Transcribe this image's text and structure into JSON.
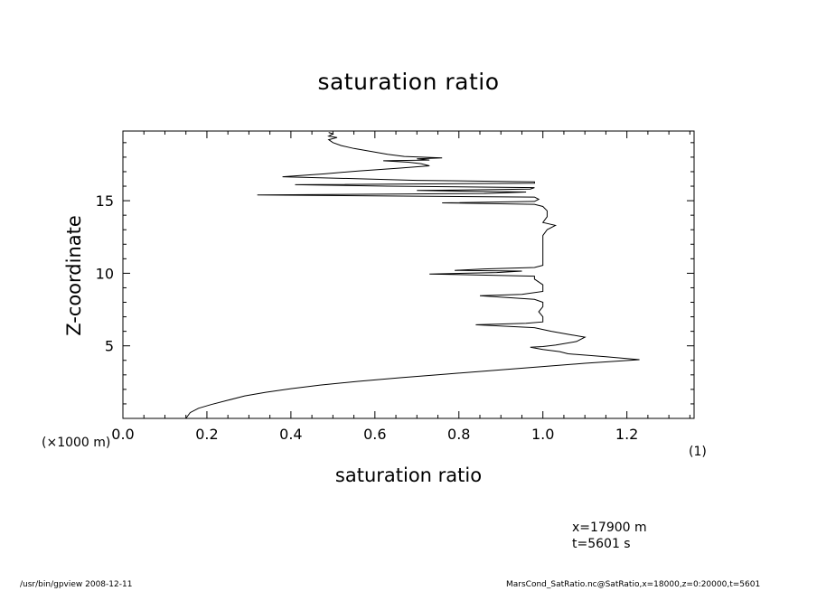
{
  "chart_data": {
    "type": "line",
    "title": "saturation ratio",
    "xlabel": "saturation ratio",
    "ylabel": "Z-coordinate",
    "x_unit": "(1)",
    "y_unit": "(×1000 m)",
    "xlim": [
      0.0,
      1.36
    ],
    "ylim": [
      0.0,
      19.8
    ],
    "x_ticks": [
      "0.0",
      "0.2",
      "0.4",
      "0.6",
      "0.8",
      "1.0",
      "1.2"
    ],
    "x_tick_values": [
      0.0,
      0.2,
      0.4,
      0.6,
      0.8,
      1.0,
      1.2
    ],
    "y_ticks": [
      "5",
      "10",
      "15"
    ],
    "y_tick_values": [
      5,
      10,
      15
    ],
    "grid": false,
    "series": [
      {
        "color": "#000000",
        "points": [
          [
            0.15,
            0.0
          ],
          [
            0.16,
            0.4
          ],
          [
            0.18,
            0.7
          ],
          [
            0.21,
            0.95
          ],
          [
            0.25,
            1.25
          ],
          [
            0.29,
            1.55
          ],
          [
            0.34,
            1.8
          ],
          [
            0.4,
            2.05
          ],
          [
            0.47,
            2.3
          ],
          [
            0.56,
            2.55
          ],
          [
            0.66,
            2.8
          ],
          [
            0.77,
            3.05
          ],
          [
            0.88,
            3.3
          ],
          [
            0.99,
            3.55
          ],
          [
            1.1,
            3.8
          ],
          [
            1.23,
            4.05
          ],
          [
            1.15,
            4.25
          ],
          [
            1.06,
            4.45
          ],
          [
            1.04,
            4.6
          ],
          [
            1.0,
            4.75
          ],
          [
            0.97,
            4.9
          ],
          [
            1.0,
            4.95
          ],
          [
            1.03,
            5.05
          ],
          [
            1.08,
            5.3
          ],
          [
            1.1,
            5.6
          ],
          [
            1.07,
            5.75
          ],
          [
            1.02,
            6.0
          ],
          [
            0.98,
            6.25
          ],
          [
            0.84,
            6.45
          ],
          [
            0.96,
            6.55
          ],
          [
            1.0,
            6.65
          ],
          [
            1.0,
            7.0
          ],
          [
            0.99,
            7.35
          ],
          [
            1.0,
            7.7
          ],
          [
            1.0,
            8.0
          ],
          [
            0.98,
            8.2
          ],
          [
            0.85,
            8.45
          ],
          [
            0.95,
            8.55
          ],
          [
            1.0,
            8.75
          ],
          [
            1.0,
            9.2
          ],
          [
            0.98,
            9.6
          ],
          [
            0.98,
            9.8
          ],
          [
            0.73,
            9.95
          ],
          [
            0.89,
            10.05
          ],
          [
            0.95,
            10.15
          ],
          [
            0.79,
            10.2
          ],
          [
            0.86,
            10.3
          ],
          [
            0.98,
            10.4
          ],
          [
            1.0,
            10.55
          ],
          [
            1.0,
            11.2
          ],
          [
            1.0,
            11.9
          ],
          [
            1.0,
            12.6
          ],
          [
            1.01,
            13.0
          ],
          [
            1.03,
            13.3
          ],
          [
            1.0,
            13.5
          ],
          [
            1.01,
            13.9
          ],
          [
            1.01,
            14.3
          ],
          [
            1.0,
            14.6
          ],
          [
            0.98,
            14.75
          ],
          [
            0.76,
            14.85
          ],
          [
            0.98,
            14.95
          ],
          [
            0.99,
            15.1
          ],
          [
            0.98,
            15.25
          ],
          [
            0.32,
            15.4
          ],
          [
            0.86,
            15.5
          ],
          [
            0.96,
            15.6
          ],
          [
            0.7,
            15.7
          ],
          [
            0.97,
            15.8
          ],
          [
            0.98,
            15.9
          ],
          [
            0.63,
            16.0
          ],
          [
            0.41,
            16.1
          ],
          [
            0.98,
            16.2
          ],
          [
            0.98,
            16.3
          ],
          [
            0.7,
            16.4
          ],
          [
            0.51,
            16.55
          ],
          [
            0.38,
            16.65
          ],
          [
            0.48,
            16.85
          ],
          [
            0.56,
            17.05
          ],
          [
            0.66,
            17.25
          ],
          [
            0.73,
            17.4
          ],
          [
            0.71,
            17.55
          ],
          [
            0.68,
            17.65
          ],
          [
            0.62,
            17.75
          ],
          [
            0.73,
            17.8
          ],
          [
            0.7,
            17.88
          ],
          [
            0.76,
            17.95
          ],
          [
            0.67,
            18.05
          ],
          [
            0.63,
            18.2
          ],
          [
            0.59,
            18.4
          ],
          [
            0.55,
            18.6
          ],
          [
            0.52,
            18.8
          ],
          [
            0.5,
            19.0
          ],
          [
            0.49,
            19.2
          ],
          [
            0.51,
            19.35
          ],
          [
            0.49,
            19.45
          ],
          [
            0.5,
            19.6
          ],
          [
            0.49,
            19.7
          ]
        ]
      }
    ]
  },
  "annotations": {
    "position": "x=17900  m",
    "time": "t=5601  s"
  },
  "footer": {
    "left": "/usr/bin/gpview   2008-12-11",
    "right": "MarsCond_SatRatio.nc@SatRatio,x=18000,z=0:20000,t=5601"
  }
}
